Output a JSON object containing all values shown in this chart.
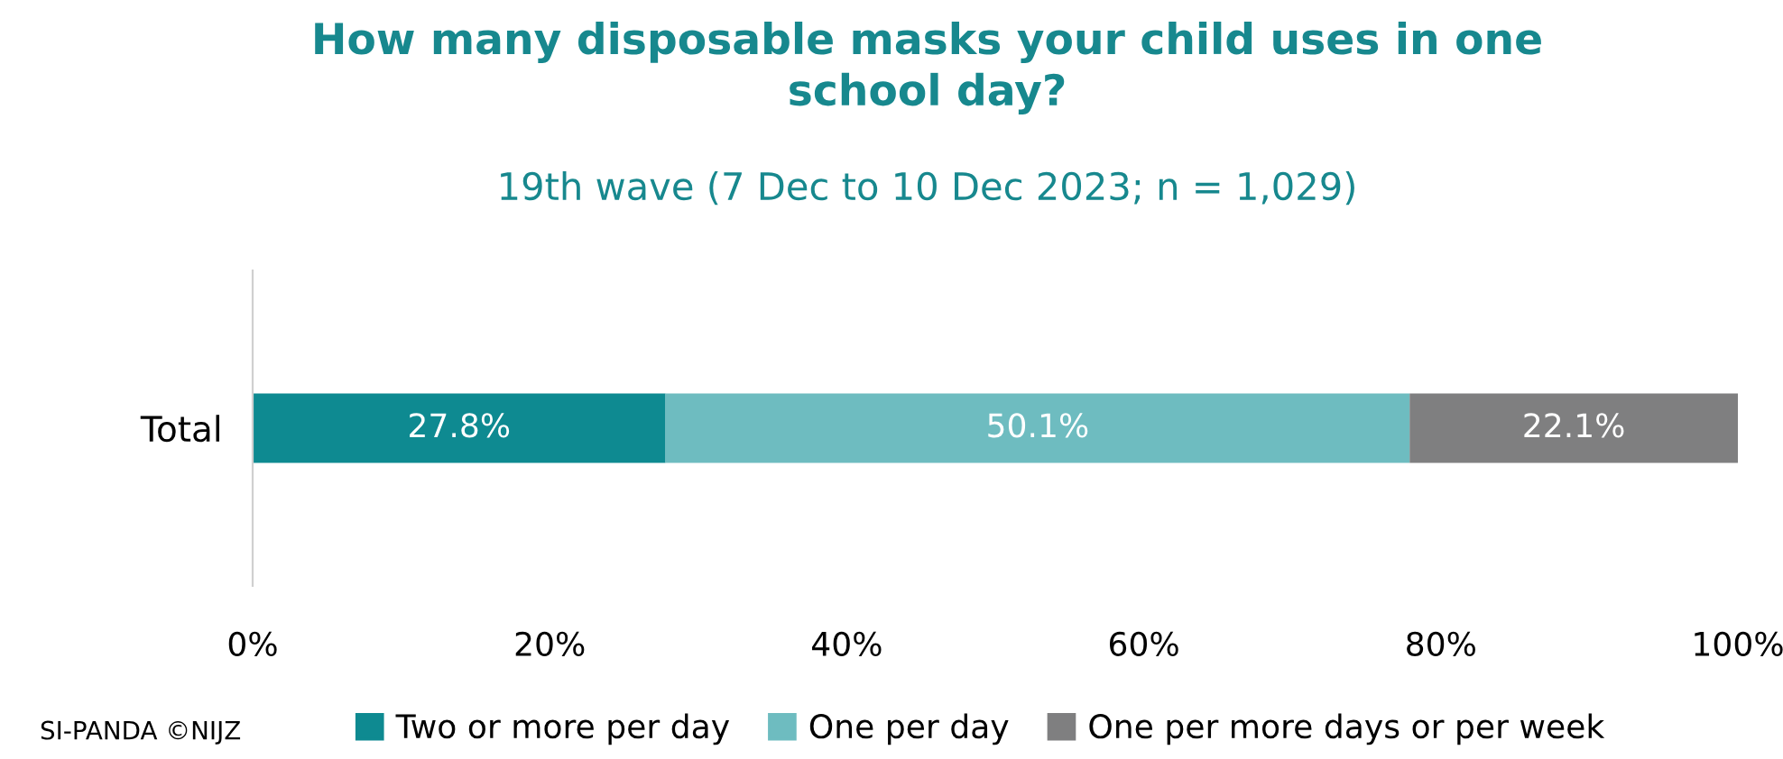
{
  "chart_data": {
    "type": "bar",
    "orientation": "horizontal",
    "stacked": true,
    "title": "How many disposable masks your child uses in one\nschool day?",
    "subtitle": "19th wave (7 Dec to 10 Dec 2023; n = 1,029)",
    "categories": [
      "Total"
    ],
    "series": [
      {
        "name": "Two or more per day",
        "color": "#0e8a91",
        "values": [
          27.8
        ],
        "value_labels": [
          "27.8%"
        ]
      },
      {
        "name": "One per day",
        "color": "#6ebcc0",
        "values": [
          50.1
        ],
        "value_labels": [
          "50.1%"
        ]
      },
      {
        "name": "One per more days or per week",
        "color": "#7f7f80",
        "values": [
          22.1
        ],
        "value_labels": [
          "22.1%"
        ]
      }
    ],
    "xlim": [
      0,
      100
    ],
    "xticks": [
      {
        "value": 0,
        "label": "0%"
      },
      {
        "value": 20,
        "label": "20%"
      },
      {
        "value": 40,
        "label": "40%"
      },
      {
        "value": 60,
        "label": "60%"
      },
      {
        "value": 80,
        "label": "80%"
      },
      {
        "value": 100,
        "label": "100%"
      }
    ],
    "grid": false,
    "legend": "bottom",
    "annotations": [
      "SI-PANDA ©NIJZ"
    ]
  }
}
